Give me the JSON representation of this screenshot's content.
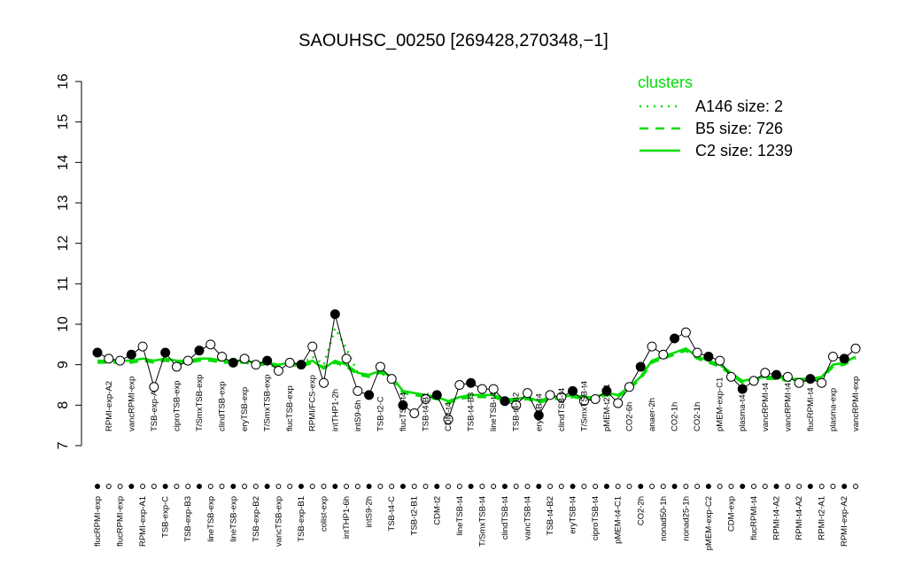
{
  "chart_data": {
    "type": "line",
    "title": "SAOUHSC_00250 [269428,270348,−1]",
    "categories": [
      "flucRPMI-exp",
      "RPMI-exp-A2",
      "flucRPMI-exp",
      "vancRPMI-exp",
      "RPMI-exp-A1",
      "TSB-exp-A",
      "TSB-exp-C",
      "ciproTSB-exp",
      "TSB-exp-B3",
      "T/SmxTSB-exp",
      "lineTSB-exp",
      "clindTSB-exp",
      "lineTSB-exp",
      "eryTSB-exp",
      "TSB-exp-B2",
      "T/SmxTSB-exp",
      "vancTSB-exp",
      "flucTSB-exp",
      "TSB-exp-B1",
      "RPMI/FCS-exp",
      "colist-exp",
      "intTHP1-2h",
      "intTHP1-6h",
      "intS9-6h",
      "intS9-2h",
      "TSB-t2-C",
      "TSB-t4-C",
      "flucTSB-t4",
      "TSB-t2-B1",
      "TSB-t4-B1",
      "CDM-t2",
      "CDM-t4",
      "lineTSB-t4",
      "TSB-t4-B3",
      "T/SmxTSB-t4",
      "lineTSB-t4",
      "clindTSB-t4",
      "TSB-t4-B2",
      "vancTSB-t4",
      "eryTSB-t4",
      "TSB-t4-B2",
      "clindTSB-t4",
      "eryTSB-t4",
      "T/SmxTSB-t4",
      "ciproTSB-t4",
      "pMEM-t2-C1",
      "pMEM-t4-C1",
      "CO2-6h",
      "CO2-2h",
      "anaer-2h",
      "nonad50-1h",
      "CO2-1h",
      "nonad25-1h",
      "CO2-1h",
      "pMEM-exp-C2",
      "pMEM-exp-C1",
      "CDM-exp",
      "plasma-t4",
      "flucRPMI-t4",
      "vancRPMI-t4",
      "RPMI-t4-A2",
      "vancRPMI-t4",
      "RPMI-t4-A2",
      "flucRPMI-t4",
      "RPMI-t2-A1",
      "plasma-exp",
      "RPMI-exp-A2",
      "vancRPMI-exp"
    ],
    "values": [
      9.3,
      9.15,
      9.1,
      9.25,
      9.45,
      8.45,
      9.3,
      8.95,
      9.1,
      9.35,
      9.5,
      9.2,
      9.05,
      9.15,
      9.0,
      9.1,
      8.85,
      9.05,
      9.0,
      9.45,
      8.55,
      10.25,
      9.15,
      8.35,
      8.25,
      8.95,
      8.65,
      8.0,
      7.8,
      8.15,
      8.25,
      7.65,
      8.5,
      8.55,
      8.4,
      8.4,
      8.1,
      8.0,
      8.3,
      7.75,
      8.25,
      8.2,
      8.35,
      8.1,
      8.15,
      8.35,
      8.05,
      8.45,
      8.95,
      9.45,
      9.25,
      9.65,
      9.8,
      9.3,
      9.2,
      9.1,
      8.7,
      8.4,
      8.6,
      8.8,
      8.75,
      8.7,
      8.55,
      8.65,
      8.55,
      9.2,
      9.15,
      9.4
    ],
    "legend_title": "clusters",
    "series": [
      {
        "name": "A146 size: 2",
        "color": "#00dd00",
        "dash": "dotted",
        "values": [
          9.1,
          9.1,
          9.1,
          9.1,
          9.15,
          9.1,
          9.15,
          9.1,
          9.1,
          9.15,
          9.15,
          9.1,
          9.1,
          9.1,
          9.05,
          9.05,
          9.0,
          9.05,
          9.0,
          9.2,
          9.0,
          9.9,
          9.4,
          8.8,
          8.75,
          8.85,
          8.7,
          8.35,
          8.3,
          8.25,
          8.2,
          8.1,
          8.2,
          8.25,
          8.25,
          8.25,
          8.15,
          8.15,
          8.2,
          8.1,
          8.2,
          8.2,
          8.25,
          8.2,
          8.2,
          8.3,
          8.25,
          8.45,
          8.7,
          9.1,
          9.2,
          9.3,
          9.4,
          9.2,
          9.1,
          9.0,
          8.8,
          8.6,
          8.65,
          8.7,
          8.7,
          8.65,
          8.65,
          8.65,
          8.7,
          9.0,
          9.05,
          9.2
        ]
      },
      {
        "name": "B5 size: 726",
        "color": "#00dd00",
        "dash": "dashed",
        "values": [
          9.05,
          9.05,
          9.05,
          9.05,
          9.1,
          9.05,
          9.1,
          9.05,
          9.05,
          9.1,
          9.1,
          9.05,
          9.05,
          9.05,
          9.0,
          9.0,
          8.95,
          9.0,
          8.95,
          9.05,
          8.95,
          9.05,
          8.95,
          8.75,
          8.7,
          8.8,
          8.65,
          8.3,
          8.25,
          8.2,
          8.15,
          8.05,
          8.15,
          8.2,
          8.2,
          8.2,
          8.1,
          8.1,
          8.15,
          8.05,
          8.15,
          8.15,
          8.2,
          8.15,
          8.15,
          8.25,
          8.2,
          8.4,
          8.65,
          9.05,
          9.15,
          9.25,
          9.35,
          9.15,
          9.05,
          8.95,
          8.75,
          8.55,
          8.6,
          8.65,
          8.65,
          8.6,
          8.6,
          8.6,
          8.65,
          8.95,
          9.0,
          9.15
        ]
      },
      {
        "name": "C2 size: 1239",
        "color": "#00dd00",
        "dash": "solid",
        "values": [
          9.1,
          9.1,
          9.1,
          9.1,
          9.15,
          9.1,
          9.15,
          9.1,
          9.1,
          9.15,
          9.15,
          9.1,
          9.1,
          9.1,
          9.05,
          9.05,
          9.0,
          9.05,
          9.0,
          9.1,
          8.9,
          9.1,
          9.0,
          8.8,
          8.75,
          8.85,
          8.7,
          8.35,
          8.3,
          8.25,
          8.2,
          8.1,
          8.2,
          8.25,
          8.25,
          8.25,
          8.15,
          8.15,
          8.2,
          8.1,
          8.2,
          8.2,
          8.25,
          8.2,
          8.2,
          8.3,
          8.25,
          8.45,
          8.7,
          9.1,
          9.2,
          9.3,
          9.4,
          9.2,
          9.1,
          9.0,
          8.8,
          8.6,
          8.65,
          8.7,
          8.7,
          8.65,
          8.65,
          8.65,
          8.7,
          9.0,
          9.05,
          9.2
        ]
      }
    ],
    "ylim": [
      7,
      16
    ],
    "yticks": [
      7,
      8,
      9,
      10,
      11,
      12,
      13,
      14,
      15,
      16
    ]
  }
}
